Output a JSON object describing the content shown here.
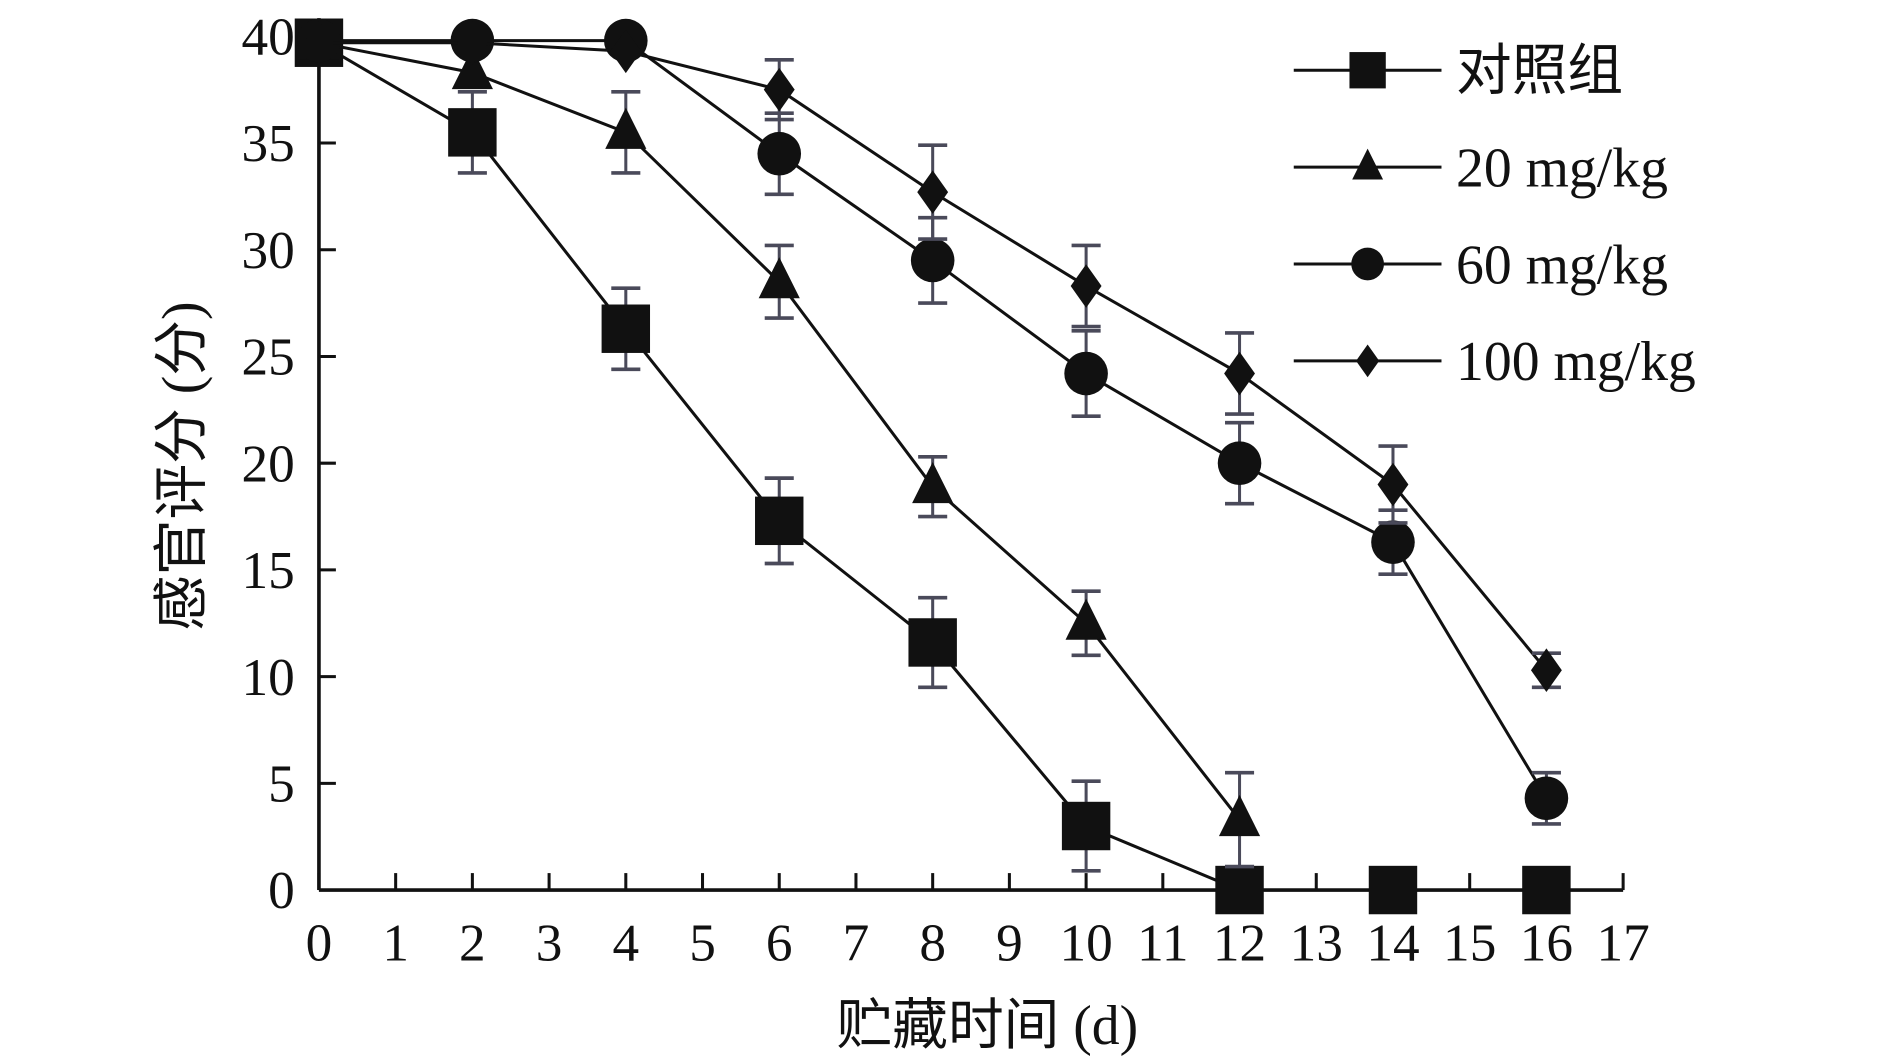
{
  "chart_data": {
    "type": "line",
    "title": "",
    "xlabel": "贮藏时间 (d)",
    "ylabel": "感官评分 (分)",
    "xlim": [
      0,
      17
    ],
    "ylim": [
      0,
      40
    ],
    "xticks": [
      0,
      1,
      2,
      3,
      4,
      5,
      6,
      7,
      8,
      9,
      10,
      11,
      12,
      13,
      14,
      15,
      16,
      17
    ],
    "yticks": [
      0,
      5,
      10,
      15,
      20,
      25,
      30,
      35,
      40
    ],
    "grid": false,
    "legend_position": "top-right",
    "x": [
      0,
      2,
      4,
      6,
      8,
      10,
      12,
      14,
      16
    ],
    "series": [
      {
        "name": "对照组",
        "marker": "square",
        "values": [
          39.7,
          35.5,
          26.3,
          17.3,
          11.6,
          3.0,
          0,
          0,
          0
        ],
        "errors": [
          0,
          1.9,
          1.9,
          2.0,
          2.1,
          2.1,
          0,
          0,
          0
        ]
      },
      {
        "name": "20 mg/kg",
        "marker": "triangle",
        "values": [
          39.7,
          38.3,
          35.5,
          28.5,
          18.9,
          12.5,
          3.3,
          null,
          null
        ],
        "errors": [
          0,
          0,
          1.9,
          1.7,
          1.4,
          1.5,
          2.2,
          null,
          null
        ]
      },
      {
        "name": "60 mg/kg",
        "marker": "circle",
        "values": [
          39.8,
          39.8,
          39.8,
          34.5,
          29.5,
          24.2,
          20.0,
          16.3,
          4.3
        ],
        "errors": [
          0,
          0,
          0,
          1.9,
          2.0,
          2.0,
          1.9,
          1.5,
          1.2
        ]
      },
      {
        "name": "100 mg/kg",
        "marker": "diamond",
        "values": [
          39.7,
          39.7,
          39.3,
          37.5,
          32.7,
          28.3,
          24.2,
          19.0,
          10.3
        ],
        "errors": [
          0,
          0,
          0,
          1.4,
          2.2,
          1.9,
          1.9,
          1.8,
          0.8
        ]
      }
    ],
    "colors": {
      "line": "#111111",
      "errorbar": "#4a4a5a"
    }
  }
}
